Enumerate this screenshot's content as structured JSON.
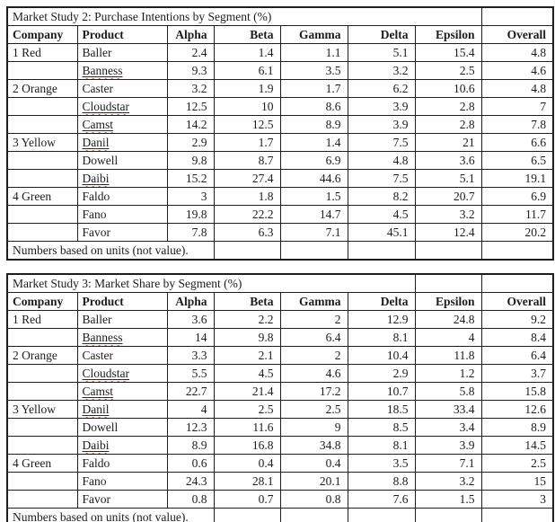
{
  "page": {
    "background_color": "#ffffff",
    "text_color": "#1c1c1c",
    "border_color": "#1d1d1d",
    "spellcheck_squiggle_color": "#dd1100"
  },
  "columns": [
    "Company",
    "Product",
    "Alpha",
    "Beta",
    "Gamma",
    "Delta",
    "Epsilon",
    "Overall"
  ],
  "tables": [
    {
      "title": "Market Study 2: Purchase Intentions by Segment (%)",
      "footnote": "Numbers based on units (not value).",
      "rows": [
        {
          "company": "1 Red",
          "product": "Baller",
          "misspelled": false,
          "values": [
            "2.4",
            "1.4",
            "1.1",
            "5.1",
            "15.4",
            "4.8"
          ]
        },
        {
          "company": "",
          "product": "Banness",
          "misspelled": true,
          "values": [
            "9.3",
            "6.1",
            "3.5",
            "3.2",
            "2.5",
            "4.6"
          ]
        },
        {
          "company": "2 Orange",
          "product": "Caster",
          "misspelled": false,
          "values": [
            "3.2",
            "1.9",
            "1.7",
            "6.2",
            "10.6",
            "4.8"
          ]
        },
        {
          "company": "",
          "product": "Cloudstar",
          "misspelled": true,
          "values": [
            "12.5",
            "10",
            "8.6",
            "3.9",
            "2.8",
            "7"
          ]
        },
        {
          "company": "",
          "product": "Camst",
          "misspelled": true,
          "values": [
            "14.2",
            "12.5",
            "8.9",
            "3.9",
            "2.8",
            "7.8"
          ]
        },
        {
          "company": "3 Yellow",
          "product": "Danil",
          "misspelled": true,
          "values": [
            "2.9",
            "1.7",
            "1.4",
            "7.5",
            "21",
            "6.6"
          ]
        },
        {
          "company": "",
          "product": "Dowell",
          "misspelled": false,
          "values": [
            "9.8",
            "8.7",
            "6.9",
            "4.8",
            "3.6",
            "6.5"
          ]
        },
        {
          "company": "",
          "product": "Daibi",
          "misspelled": true,
          "values": [
            "15.2",
            "27.4",
            "44.6",
            "7.5",
            "5.1",
            "19.1"
          ]
        },
        {
          "company": "4 Green",
          "product": "Faldo",
          "misspelled": false,
          "values": [
            "3",
            "1.8",
            "1.5",
            "8.2",
            "20.7",
            "6.9"
          ]
        },
        {
          "company": "",
          "product": "Fano",
          "misspelled": false,
          "values": [
            "19.8",
            "22.2",
            "14.7",
            "4.5",
            "3.2",
            "11.7"
          ]
        },
        {
          "company": "",
          "product": "Favor",
          "misspelled": false,
          "values": [
            "7.8",
            "6.3",
            "7.1",
            "45.1",
            "12.4",
            "20.2"
          ]
        }
      ]
    },
    {
      "title": "Market Study 3: Market Share by Segment (%)",
      "footnote": "Numbers based on units (not value).",
      "rows": [
        {
          "company": "1 Red",
          "product": "Baller",
          "misspelled": false,
          "values": [
            "3.6",
            "2.2",
            "2",
            "12.9",
            "24.8",
            "9.2"
          ]
        },
        {
          "company": "",
          "product": "Banness",
          "misspelled": true,
          "values": [
            "14",
            "9.8",
            "6.4",
            "8.1",
            "4",
            "8.4"
          ]
        },
        {
          "company": "2 Orange",
          "product": "Caster",
          "misspelled": false,
          "values": [
            "3.3",
            "2.1",
            "2",
            "10.4",
            "11.8",
            "6.4"
          ]
        },
        {
          "company": "",
          "product": "Cloudstar",
          "misspelled": true,
          "values": [
            "5.5",
            "4.5",
            "4.6",
            "2.9",
            "1.2",
            "3.7"
          ]
        },
        {
          "company": "",
          "product": "Camst",
          "misspelled": true,
          "values": [
            "22.7",
            "21.4",
            "17.2",
            "10.7",
            "5.8",
            "15.8"
          ]
        },
        {
          "company": "3 Yellow",
          "product": "Danil",
          "misspelled": true,
          "values": [
            "4",
            "2.5",
            "2.5",
            "18.5",
            "33.4",
            "12.6"
          ]
        },
        {
          "company": "",
          "product": "Dowell",
          "misspelled": false,
          "values": [
            "12.3",
            "11.6",
            "9",
            "8.5",
            "3.4",
            "8.9"
          ]
        },
        {
          "company": "",
          "product": "Daibi",
          "misspelled": true,
          "values": [
            "8.9",
            "16.8",
            "34.8",
            "8.1",
            "3.9",
            "14.5"
          ]
        },
        {
          "company": "4 Green",
          "product": "Faldo",
          "misspelled": false,
          "values": [
            "0.6",
            "0.4",
            "0.4",
            "3.5",
            "7.1",
            "2.5"
          ]
        },
        {
          "company": "",
          "product": "Fano",
          "misspelled": false,
          "values": [
            "24.3",
            "28.1",
            "20.1",
            "8.8",
            "3.2",
            "15"
          ]
        },
        {
          "company": "",
          "product": "Favor",
          "misspelled": false,
          "values": [
            "0.8",
            "0.7",
            "0.8",
            "7.6",
            "1.5",
            "3"
          ]
        }
      ]
    }
  ]
}
